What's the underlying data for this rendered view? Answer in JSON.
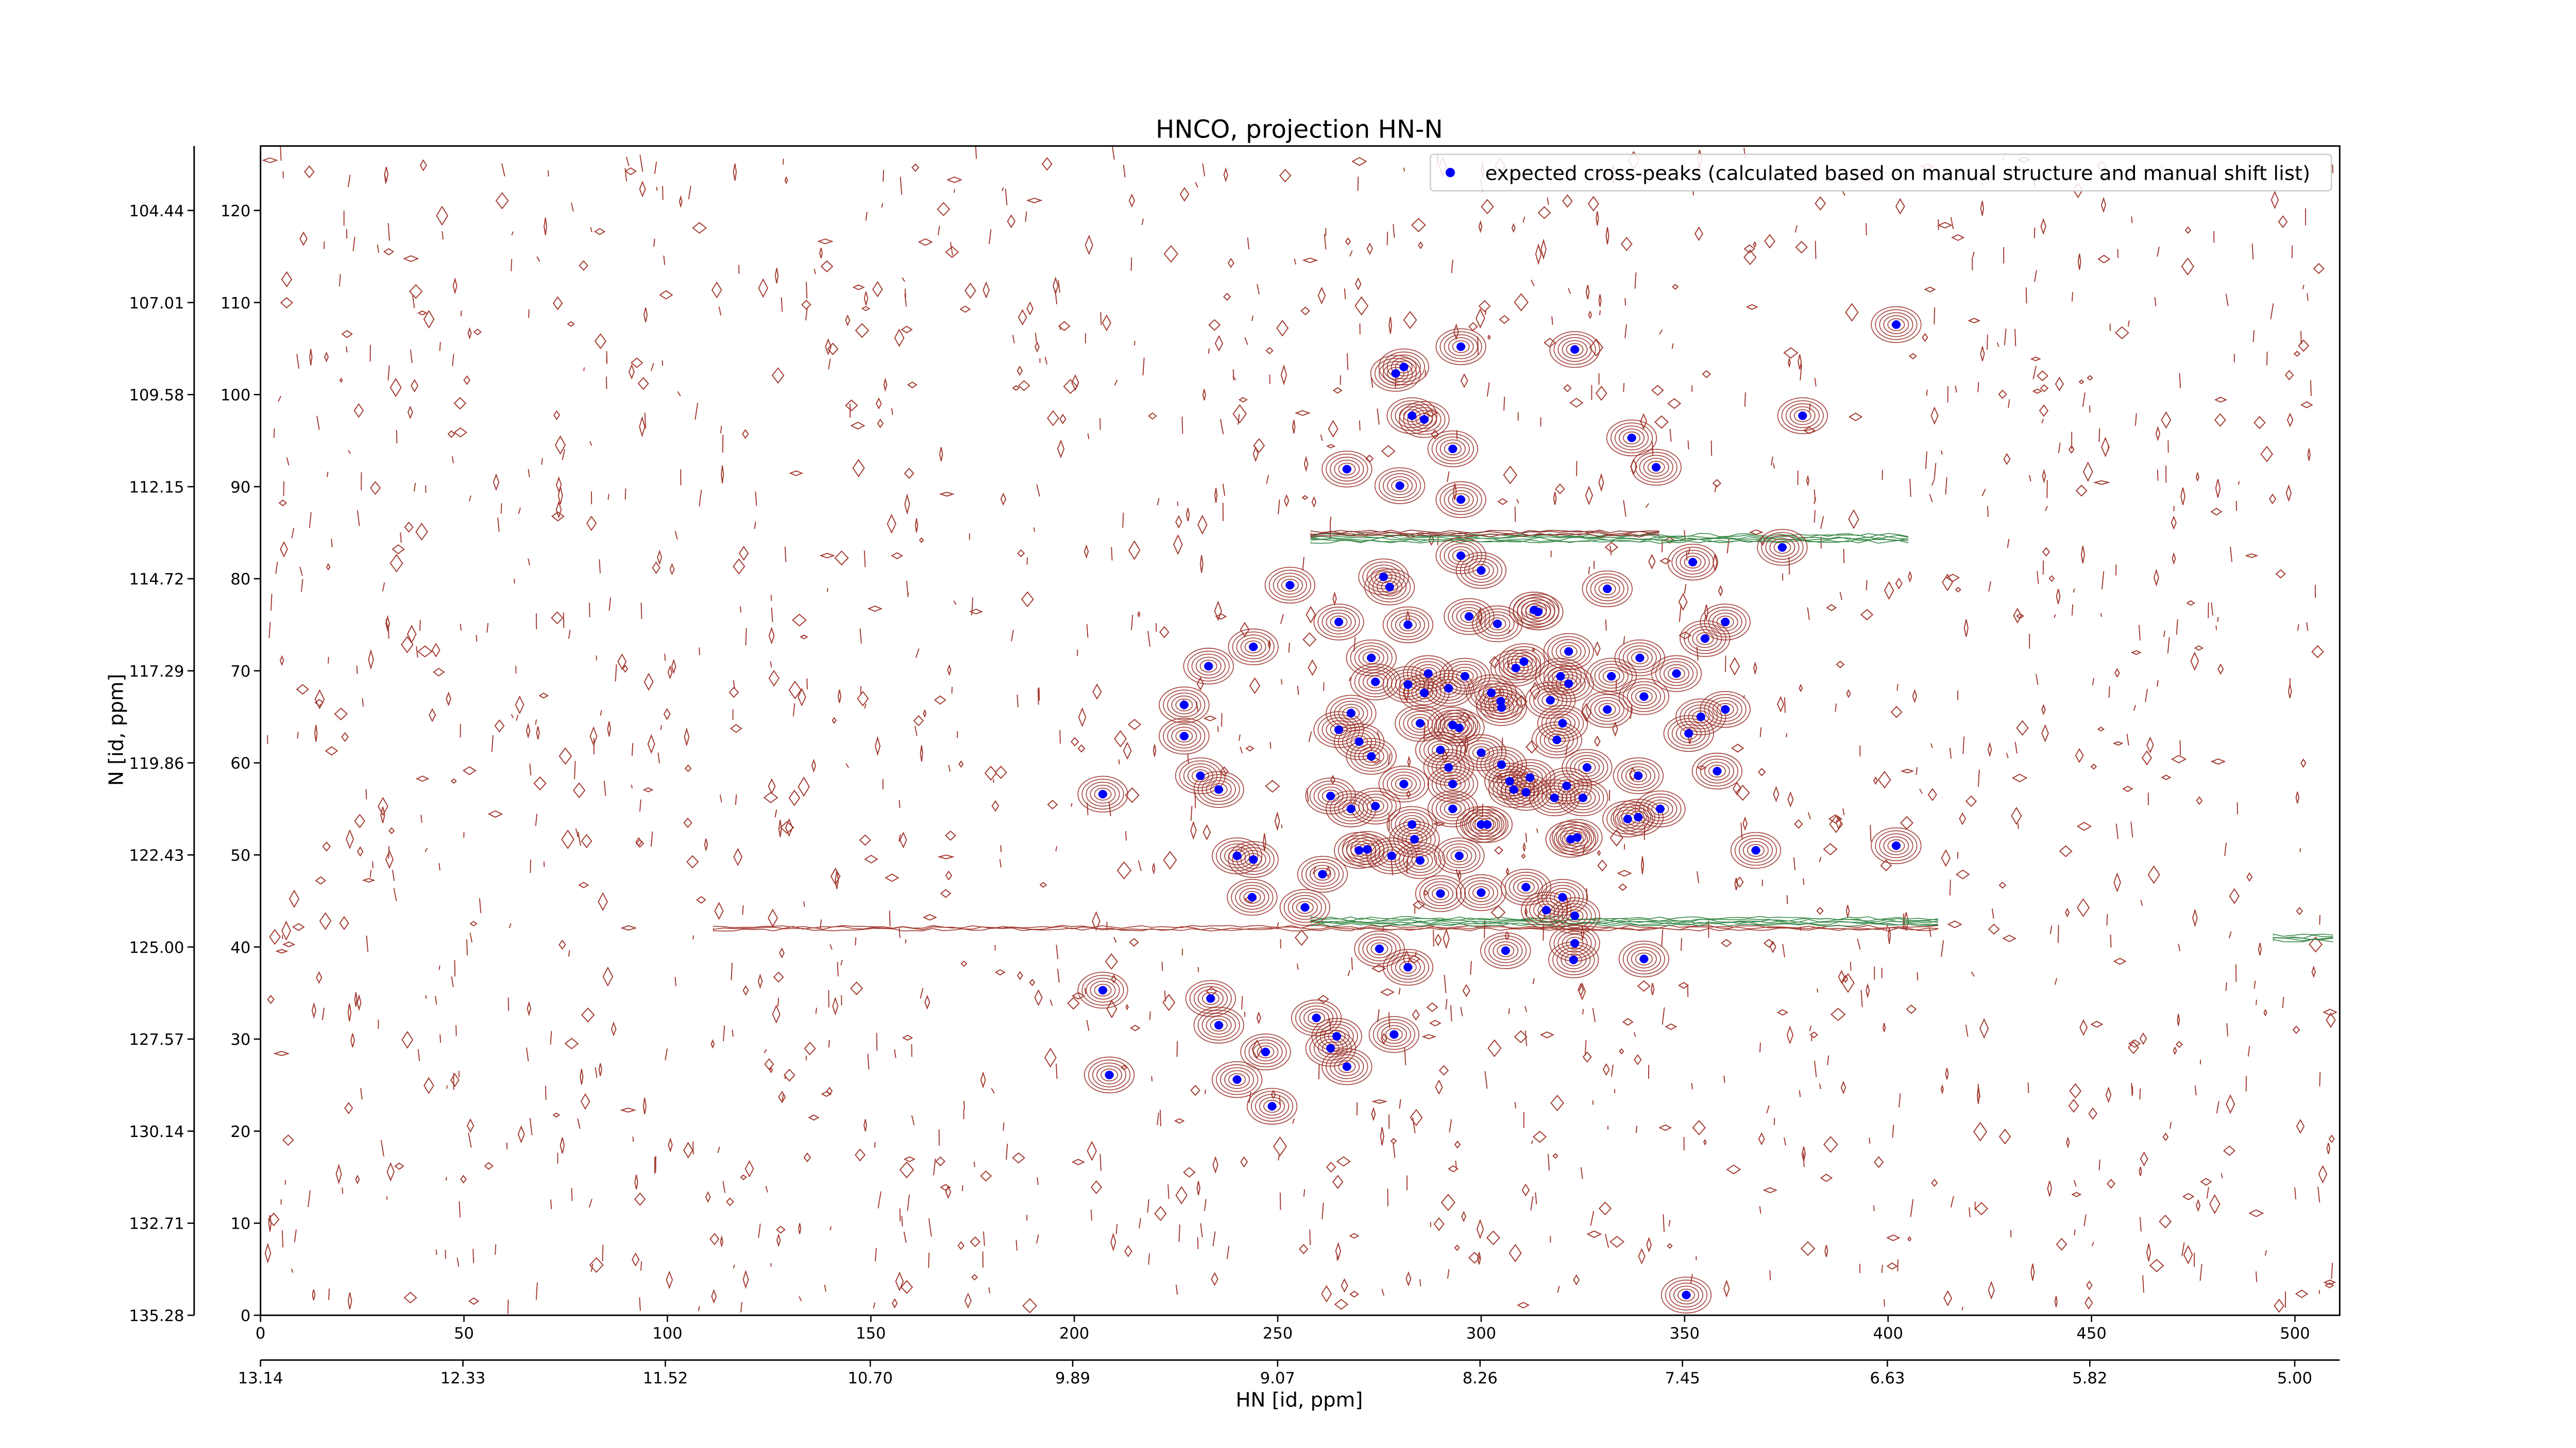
{
  "chart_data": {
    "type": "scatter",
    "title": "HNCO, projection HN-N",
    "xlabel": "HN [id, ppm]",
    "ylabel": "N [id, ppm]",
    "xlim": [
      0,
      511
    ],
    "ylim": [
      0,
      127
    ],
    "xticks": [
      0,
      50,
      100,
      150,
      200,
      250,
      300,
      350,
      400,
      450,
      500
    ],
    "yticks": [
      0,
      10,
      20,
      30,
      40,
      50,
      60,
      70,
      80,
      90,
      100,
      110,
      120
    ],
    "x2lim": [
      13.14,
      4.82
    ],
    "x2ticks": [
      13.14,
      12.33,
      11.52,
      {
        "value": 10.7,
        "label": "10.70"
      },
      9.89,
      9.07,
      8.26,
      7.45,
      6.63,
      5.82,
      {
        "value": 5.0,
        "label": "5.00"
      }
    ],
    "y2lim": [
      135.28,
      102.64
    ],
    "y2ticks": [
      135.28,
      132.71,
      130.14,
      127.57,
      {
        "value": 125.0,
        "label": "125.00"
      },
      122.43,
      119.86,
      117.29,
      114.72,
      112.15,
      109.58,
      107.01,
      104.44
    ],
    "legend": "upper right",
    "series": [
      {
        "name": "expected cross-peaks (calculated based on manual structure and manual shift list)",
        "color": "#0000ff",
        "x": [
          402,
          295,
          281,
          279,
          323,
          283,
          286,
          379,
          337,
          293,
          267,
          343,
          280,
          295,
          374,
          295,
          300,
          352,
          253,
          276,
          277.5,
          331,
          297,
          313,
          314,
          265,
          282,
          304,
          360,
          355,
          244,
          321.5,
          233,
          273,
          339,
          308.5,
          310.5,
          332,
          348,
          274,
          282,
          287,
          296,
          319.5,
          321.5,
          302.5,
          304.8,
          305,
          286,
          292,
          340,
          227,
          317,
          360,
          331,
          268,
          285,
          293,
          294.6,
          320,
          354,
          265,
          270,
          351,
          318.6,
          227,
          273,
          290,
          300,
          292,
          305,
          326,
          358,
          231,
          338.6,
          307,
          312,
          235.5,
          281,
          293,
          308,
          311,
          321,
          207,
          263,
          402,
          318,
          325,
          274,
          268,
          293,
          344,
          283,
          300,
          301.5,
          336,
          338.6,
          322,
          323.6,
          283.6,
          367.5,
          272,
          270,
          278,
          240,
          244,
          294.6,
          285,
          261,
          311,
          300,
          290,
          243.7,
          320,
          256.7,
          316,
          323,
          275,
          323,
          306,
          322.7,
          282,
          340,
          207,
          233.5,
          235.5,
          259.5,
          278.6,
          264.5,
          263,
          247,
          267,
          208.6,
          240,
          248.6,
          350.4
        ],
        "values": [
          107.6,
          105.2,
          103,
          102.3,
          104.9,
          97.7,
          97.3,
          97.7,
          95.3,
          94.1,
          91.9,
          92.1,
          90.1,
          88.6,
          83.4,
          82.5,
          80.9,
          81.8,
          79.3,
          80.2,
          79.1,
          78.9,
          75.9,
          76.6,
          76.4,
          75.3,
          75,
          75.1,
          75.3,
          73.5,
          72.6,
          72.1,
          70.5,
          71.4,
          71.4,
          70.3,
          71,
          69.4,
          69.7,
          68.8,
          68.5,
          69.7,
          69.4,
          69.4,
          68.6,
          67.6,
          66.7,
          66,
          67.6,
          68.1,
          67.2,
          66.3,
          66.8,
          65.8,
          65.8,
          65.4,
          64.3,
          64.1,
          63.8,
          64.3,
          65,
          63.6,
          62.3,
          63.2,
          62.5,
          62.9,
          60.7,
          61.4,
          61.1,
          59.5,
          59.8,
          59.5,
          59.1,
          58.6,
          58.6,
          58,
          58.4,
          57.1,
          57.7,
          57.7,
          57.1,
          56.8,
          57.5,
          56.6,
          56.4,
          51,
          56.2,
          56.2,
          55.3,
          55,
          55,
          55,
          53.3,
          53.3,
          53.3,
          53.9,
          54.1,
          51.7,
          51.9,
          51.7,
          50.5,
          50.6,
          50.5,
          49.9,
          49.9,
          49.5,
          49.9,
          49.4,
          47.9,
          46.5,
          45.9,
          45.8,
          45.4,
          45.4,
          44.3,
          44,
          43.4,
          39.8,
          40.4,
          39.6,
          38.6,
          37.8,
          38.7,
          35.3,
          34.4,
          31.5,
          32.3,
          30.5,
          30.3,
          29,
          28.6,
          27,
          26.1,
          25.6,
          22.7,
          2.2
        ]
      }
    ]
  }
}
